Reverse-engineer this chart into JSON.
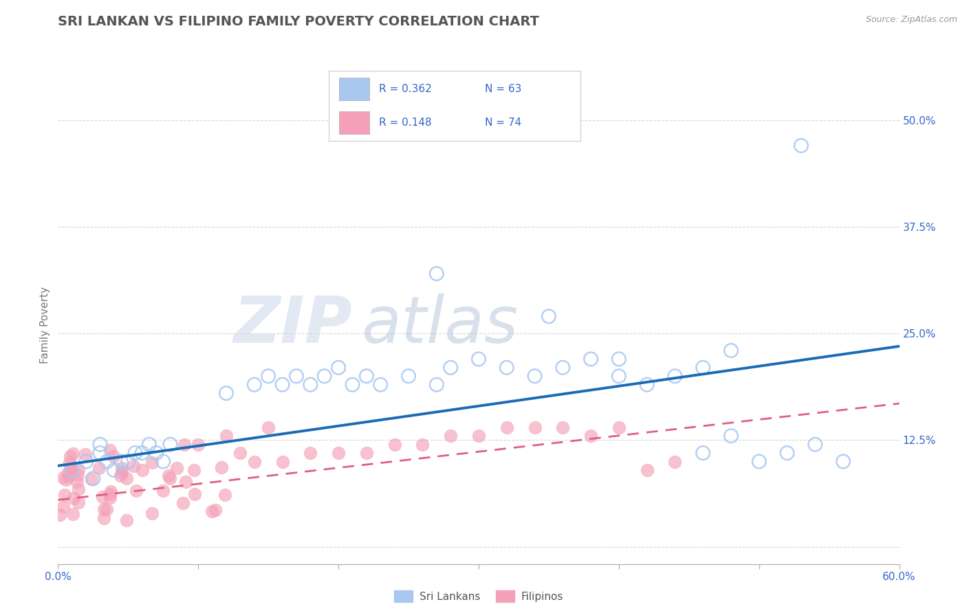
{
  "title": "SRI LANKAN VS FILIPINO FAMILY POVERTY CORRELATION CHART",
  "source": "Source: ZipAtlas.com",
  "ylabel": "Family Poverty",
  "xlim": [
    0.0,
    0.6
  ],
  "ylim": [
    -0.02,
    0.54
  ],
  "y_ticks": [
    0.0,
    0.125,
    0.25,
    0.375,
    0.5
  ],
  "y_tick_labels": [
    "",
    "12.5%",
    "25.0%",
    "37.5%",
    "50.0%"
  ],
  "sri_lankan_R": 0.362,
  "sri_lankan_N": 63,
  "filipino_R": 0.148,
  "filipino_N": 74,
  "sri_lankan_color": "#a8c8f0",
  "filipino_color": "#f4a0b8",
  "sri_lankan_line_color": "#1a6bb5",
  "filipino_line_color": "#e06080",
  "background_color": "#ffffff",
  "grid_color": "#cccccc",
  "title_color": "#555555",
  "axis_label_color": "#3366cc",
  "sri_lankans_label": "Sri Lankans",
  "filipinos_label": "Filipinos",
  "watermark_zip_color": "#c8d8ee",
  "watermark_atlas_color": "#b0c4de",
  "sl_line_y0": 0.095,
  "sl_line_y1": 0.235,
  "ph_line_y0": 0.055,
  "ph_line_y1": 0.168
}
